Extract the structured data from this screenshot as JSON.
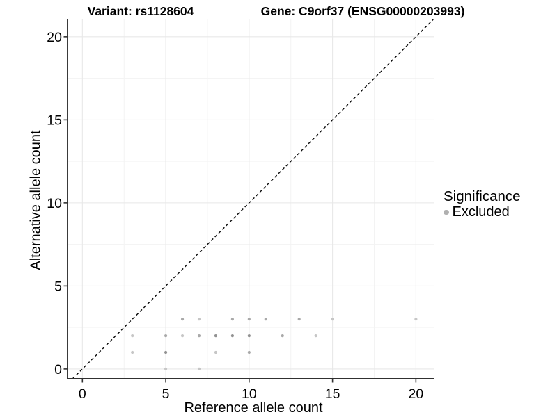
{
  "chart_data": {
    "type": "scatter",
    "title_left": "Variant: rs1128604",
    "title_right": "Gene: C9orf37 (ENSG00000203993)",
    "xlabel": "Reference allele count",
    "ylabel": "Alternative allele count",
    "xlim": [
      -0.89,
      21.07
    ],
    "ylim": [
      -0.59,
      21.04
    ],
    "x_ticks": [
      0,
      5,
      10,
      15,
      20
    ],
    "y_ticks": [
      0,
      5,
      10,
      15,
      20
    ],
    "x_minor_ticks": [
      2.5,
      7.5,
      12.5,
      17.5
    ],
    "y_minor_ticks": [
      2.5,
      7.5,
      12.5,
      17.5
    ],
    "grid": "major+minor on white background",
    "identity_line": {
      "style": "dashed",
      "color": "#0a0a0a",
      "from": [
        -0.59,
        -0.59
      ],
      "to": [
        21.04,
        21.04
      ]
    },
    "legend": {
      "title": "Significance",
      "position": "right",
      "items": [
        {
          "label": "Excluded",
          "color": "#b0b0b0"
        }
      ]
    },
    "colors": {
      "grid_major": "#e8e8e8",
      "grid_minor": "#f3f3f3",
      "axis_line": "#303030",
      "tick_label": "#000000",
      "shade_light": "#c6c6c6",
      "shade_medium": "#a9a9a9",
      "shade_dark": "#929292"
    },
    "series": [
      {
        "name": "Excluded",
        "points": [
          {
            "x": 5,
            "y": 0,
            "shade": "light"
          },
          {
            "x": 7,
            "y": 0,
            "shade": "light"
          },
          {
            "x": 3,
            "y": 1,
            "shade": "light"
          },
          {
            "x": 5,
            "y": 1,
            "shade": "dark"
          },
          {
            "x": 8,
            "y": 1,
            "shade": "light"
          },
          {
            "x": 10,
            "y": 1,
            "shade": "medium"
          },
          {
            "x": 3,
            "y": 2,
            "shade": "light"
          },
          {
            "x": 5,
            "y": 2,
            "shade": "medium"
          },
          {
            "x": 6,
            "y": 2,
            "shade": "light"
          },
          {
            "x": 7,
            "y": 2,
            "shade": "medium"
          },
          {
            "x": 8,
            "y": 2,
            "shade": "dark"
          },
          {
            "x": 9,
            "y": 2,
            "shade": "dark"
          },
          {
            "x": 10,
            "y": 2,
            "shade": "dark"
          },
          {
            "x": 12,
            "y": 2,
            "shade": "medium"
          },
          {
            "x": 14,
            "y": 2,
            "shade": "light"
          },
          {
            "x": 6,
            "y": 3,
            "shade": "medium"
          },
          {
            "x": 7,
            "y": 3,
            "shade": "light"
          },
          {
            "x": 9,
            "y": 3,
            "shade": "medium"
          },
          {
            "x": 10,
            "y": 3,
            "shade": "medium"
          },
          {
            "x": 11,
            "y": 3,
            "shade": "medium"
          },
          {
            "x": 13,
            "y": 3,
            "shade": "medium"
          },
          {
            "x": 15,
            "y": 3,
            "shade": "light"
          },
          {
            "x": 20,
            "y": 3,
            "shade": "light"
          }
        ]
      }
    ]
  }
}
